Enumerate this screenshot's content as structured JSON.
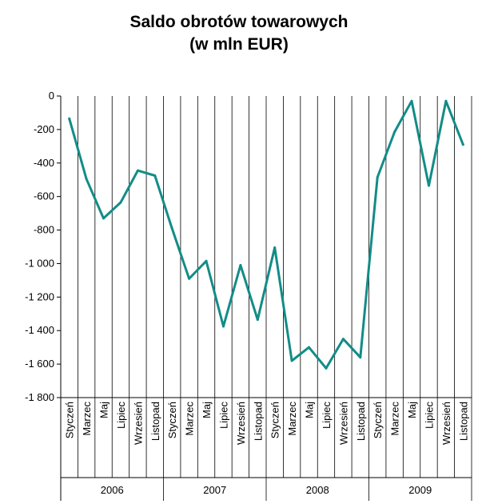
{
  "chart_data": {
    "type": "line",
    "title_lines": [
      "Saldo obrotów towarowych",
      "(w mln EUR)"
    ],
    "xlabel": "",
    "ylabel": "",
    "ylim": [
      -1800,
      0
    ],
    "yticks": [
      0,
      -200,
      -400,
      -600,
      -800,
      -1000,
      -1200,
      -1400,
      -1600,
      -1800
    ],
    "ytick_labels": [
      "0",
      "-200",
      "-400",
      "-600",
      "-800",
      "-1 000",
      "-1 200",
      "-1 400",
      "-1 600",
      "-1 800"
    ],
    "grid": "vertical lines between months and years",
    "line_color": "#138C87",
    "years": [
      {
        "label": "2006",
        "months": 12
      },
      {
        "label": "2007",
        "months": 12
      },
      {
        "label": "2008",
        "months": 12
      },
      {
        "label": "2009",
        "months": 12
      }
    ],
    "month_labels_shown": [
      "Styczeń",
      "Marzec",
      "Maj",
      "Lipiec",
      "Wrzesień",
      "Listopad"
    ],
    "x": [
      "2006-01",
      "2006-03",
      "2006-05",
      "2006-07",
      "2006-09",
      "2006-11",
      "2007-01",
      "2007-03",
      "2007-05",
      "2007-07",
      "2007-09",
      "2007-11",
      "2008-01",
      "2008-03",
      "2008-05",
      "2008-07",
      "2008-09",
      "2008-11",
      "2009-01",
      "2009-03",
      "2009-05",
      "2009-07",
      "2009-09",
      "2009-11"
    ],
    "values": [
      -135,
      -495,
      -730,
      -635,
      -445,
      -475,
      -790,
      -1090,
      -985,
      -1375,
      -1010,
      -1335,
      -905,
      -1580,
      -1500,
      -1625,
      -1450,
      -1560,
      -485,
      -215,
      -30,
      -535,
      -30,
      -290
    ]
  }
}
